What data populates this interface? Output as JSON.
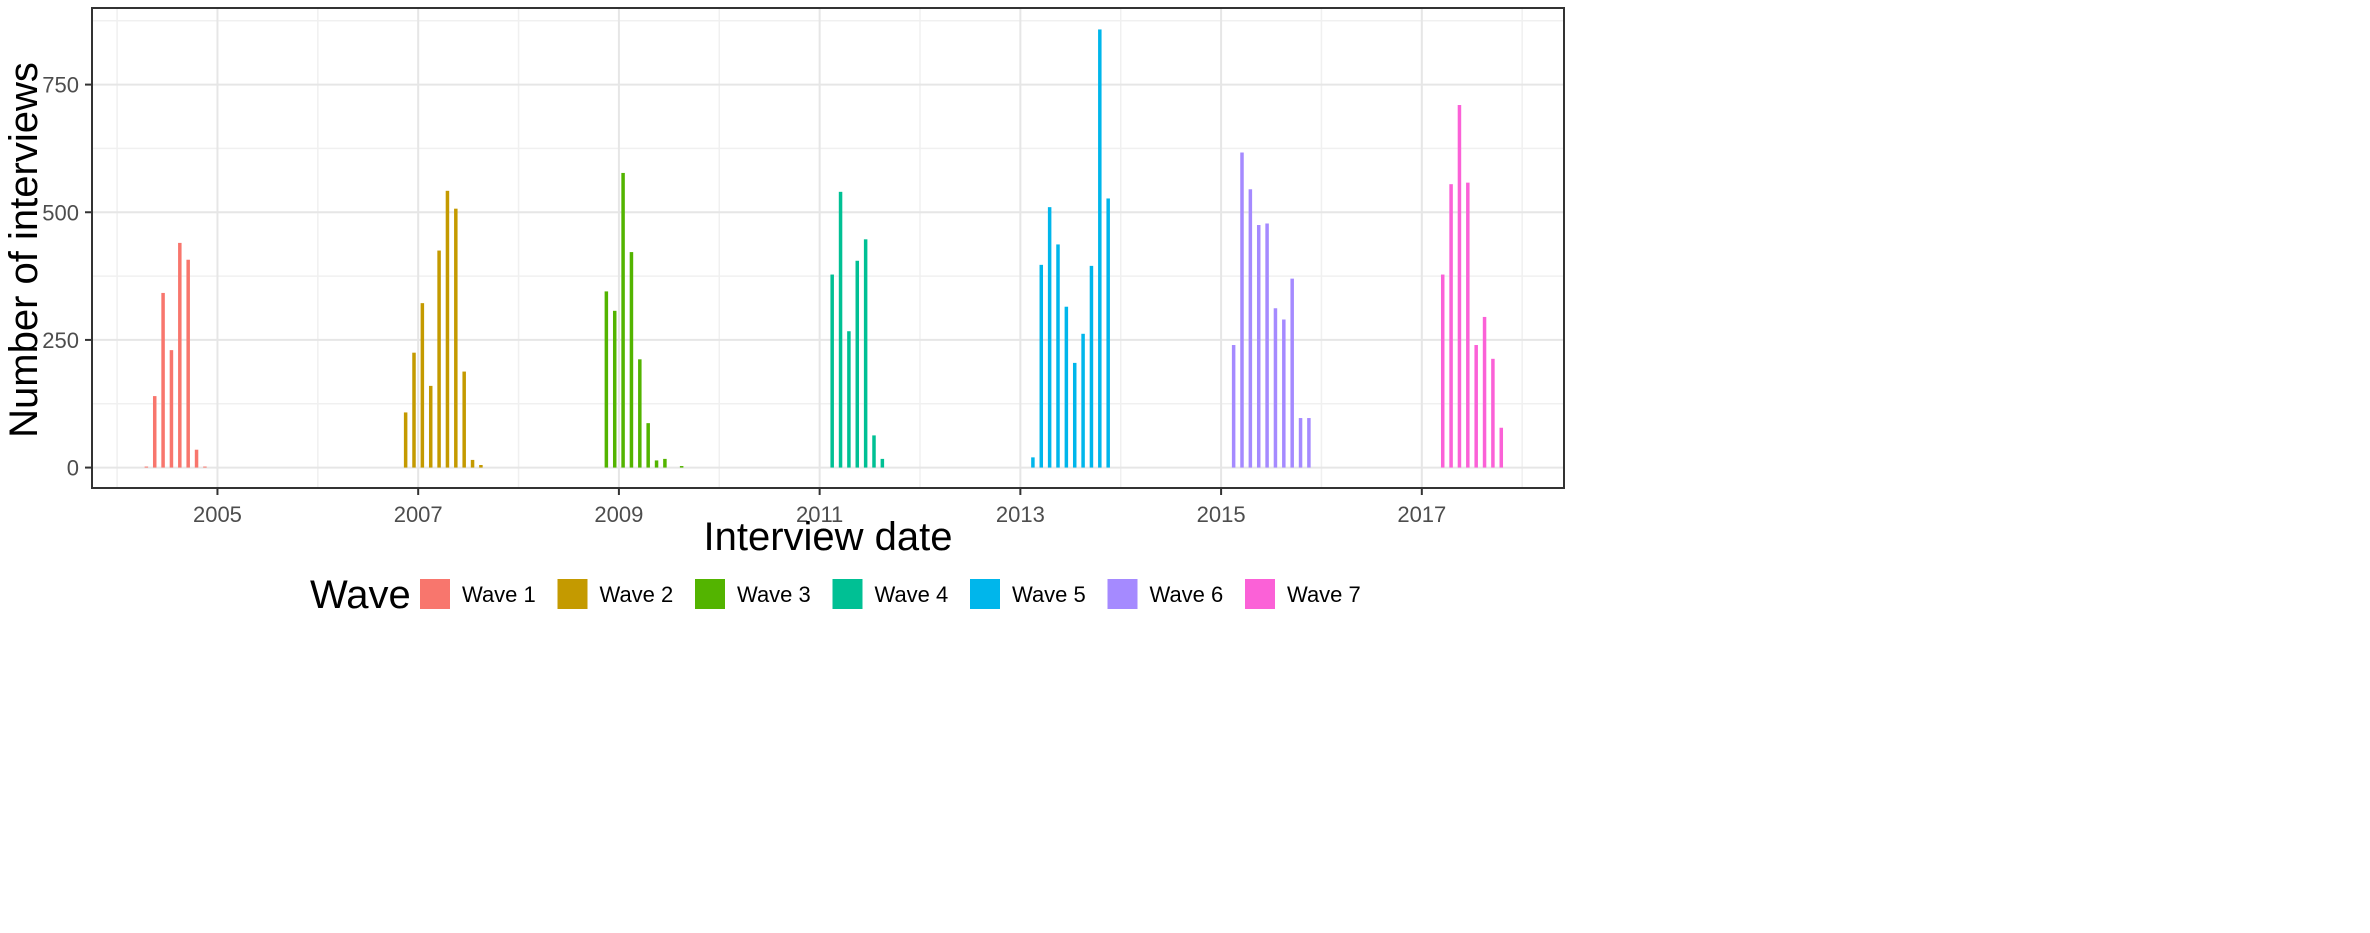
{
  "chart_data": {
    "type": "bar",
    "title": "",
    "xlabel": "Interview date",
    "ylabel": "Number of interviews",
    "xlim": [
      "2003-10",
      "2018-06"
    ],
    "ylim": [
      -40,
      900
    ],
    "x_ticks": [
      "2005",
      "2007",
      "2009",
      "2011",
      "2013",
      "2015",
      "2017"
    ],
    "x_tick_dates": [
      "2005-01",
      "2007-01",
      "2009-01",
      "2011-01",
      "2013-01",
      "2015-01",
      "2017-01"
    ],
    "y_ticks": [
      0,
      250,
      500,
      750
    ],
    "grid": true,
    "legend": {
      "title": "Wave",
      "placement": "bottom"
    },
    "series": [
      {
        "name": "Wave 1",
        "color": "#F8766D",
        "points": [
          {
            "month": "2004-04",
            "value": 2
          },
          {
            "month": "2004-05",
            "value": 140
          },
          {
            "month": "2004-06",
            "value": 342
          },
          {
            "month": "2004-07",
            "value": 230
          },
          {
            "month": "2004-08",
            "value": 440
          },
          {
            "month": "2004-09",
            "value": 407
          },
          {
            "month": "2004-10",
            "value": 35
          },
          {
            "month": "2004-11",
            "value": 2
          }
        ]
      },
      {
        "name": "Wave 2",
        "color": "#C49A00",
        "points": [
          {
            "month": "2006-11",
            "value": 108
          },
          {
            "month": "2006-12",
            "value": 225
          },
          {
            "month": "2007-01",
            "value": 322
          },
          {
            "month": "2007-02",
            "value": 160
          },
          {
            "month": "2007-03",
            "value": 425
          },
          {
            "month": "2007-04",
            "value": 542
          },
          {
            "month": "2007-05",
            "value": 507
          },
          {
            "month": "2007-06",
            "value": 188
          },
          {
            "month": "2007-07",
            "value": 15
          },
          {
            "month": "2007-08",
            "value": 5
          }
        ]
      },
      {
        "name": "Wave 3",
        "color": "#53B400",
        "points": [
          {
            "month": "2008-11",
            "value": 345
          },
          {
            "month": "2008-12",
            "value": 307
          },
          {
            "month": "2009-01",
            "value": 577
          },
          {
            "month": "2009-02",
            "value": 422
          },
          {
            "month": "2009-03",
            "value": 212
          },
          {
            "month": "2009-04",
            "value": 87
          },
          {
            "month": "2009-05",
            "value": 14
          },
          {
            "month": "2009-06",
            "value": 17
          },
          {
            "month": "2009-08",
            "value": 3
          }
        ]
      },
      {
        "name": "Wave 4",
        "color": "#00C094",
        "points": [
          {
            "month": "2011-02",
            "value": 378
          },
          {
            "month": "2011-03",
            "value": 540
          },
          {
            "month": "2011-04",
            "value": 267
          },
          {
            "month": "2011-05",
            "value": 405
          },
          {
            "month": "2011-06",
            "value": 447
          },
          {
            "month": "2011-07",
            "value": 63
          },
          {
            "month": "2011-08",
            "value": 17
          }
        ]
      },
      {
        "name": "Wave 5",
        "color": "#00B6EB",
        "points": [
          {
            "month": "2013-02",
            "value": 20
          },
          {
            "month": "2013-03",
            "value": 397
          },
          {
            "month": "2013-04",
            "value": 510
          },
          {
            "month": "2013-05",
            "value": 437
          },
          {
            "month": "2013-06",
            "value": 315
          },
          {
            "month": "2013-07",
            "value": 205
          },
          {
            "month": "2013-08",
            "value": 262
          },
          {
            "month": "2013-09",
            "value": 395
          },
          {
            "month": "2013-10",
            "value": 858
          },
          {
            "month": "2013-11",
            "value": 527
          }
        ]
      },
      {
        "name": "Wave 6",
        "color": "#A58AFF",
        "points": [
          {
            "month": "2015-02",
            "value": 240
          },
          {
            "month": "2015-03",
            "value": 617
          },
          {
            "month": "2015-04",
            "value": 545
          },
          {
            "month": "2015-05",
            "value": 475
          },
          {
            "month": "2015-06",
            "value": 478
          },
          {
            "month": "2015-07",
            "value": 312
          },
          {
            "month": "2015-08",
            "value": 290
          },
          {
            "month": "2015-09",
            "value": 370
          },
          {
            "month": "2015-10",
            "value": 97
          },
          {
            "month": "2015-11",
            "value": 97
          }
        ]
      },
      {
        "name": "Wave 7",
        "color": "#FB61D7",
        "points": [
          {
            "month": "2017-03",
            "value": 378
          },
          {
            "month": "2017-04",
            "value": 555
          },
          {
            "month": "2017-05",
            "value": 710
          },
          {
            "month": "2017-06",
            "value": 558
          },
          {
            "month": "2017-07",
            "value": 240
          },
          {
            "month": "2017-08",
            "value": 295
          },
          {
            "month": "2017-09",
            "value": 213
          },
          {
            "month": "2017-10",
            "value": 78
          }
        ]
      }
    ]
  }
}
